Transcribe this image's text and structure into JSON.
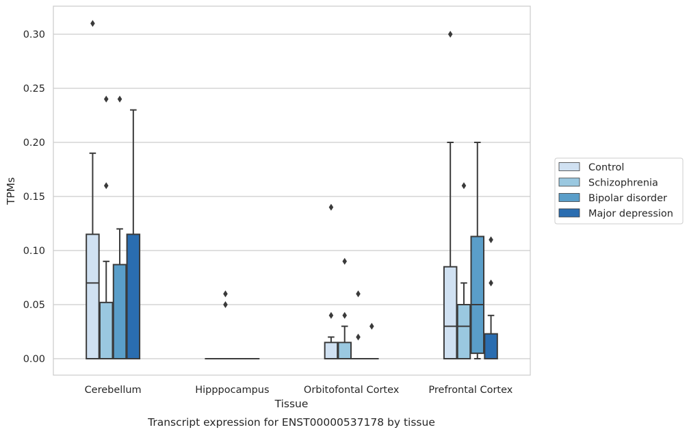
{
  "chart_data": {
    "type": "box",
    "caption": "Transcript expression for ENST00000537178 by tissue",
    "xlabel": "Tissue",
    "ylabel": "TPMs",
    "ylim": [
      -0.015,
      0.327
    ],
    "yticks": [
      0.0,
      0.05,
      0.1,
      0.15,
      0.2,
      0.25,
      0.3
    ],
    "ytick_labels": [
      "0.00",
      "0.05",
      "0.10",
      "0.15",
      "0.20",
      "0.25",
      "0.30"
    ],
    "categories": [
      "Cerebellum",
      "Hipppocampus",
      "Orbitofontal Cortex",
      "Prefrontal Cortex"
    ],
    "grid": "horizontal",
    "legend_position": "right",
    "series": [
      {
        "name": "Control",
        "color": "#d0e1f2",
        "boxes": [
          {
            "q1": 0.0,
            "median": 0.07,
            "q3": 0.115,
            "whisker_low": 0.0,
            "whisker_high": 0.19,
            "outliers": [
              0.31
            ]
          },
          {
            "q1": 0.0,
            "median": 0.0,
            "q3": 0.0,
            "whisker_low": 0.0,
            "whisker_high": 0.0,
            "outliers": []
          },
          {
            "q1": 0.0,
            "median": 0.0,
            "q3": 0.015,
            "whisker_low": 0.0,
            "whisker_high": 0.02,
            "outliers": [
              0.04,
              0.14
            ]
          },
          {
            "q1": 0.0,
            "median": 0.03,
            "q3": 0.085,
            "whisker_low": 0.0,
            "whisker_high": 0.2,
            "outliers": [
              0.3
            ]
          }
        ]
      },
      {
        "name": "Schizophrenia",
        "color": "#9ac8e0",
        "boxes": [
          {
            "q1": 0.0,
            "median": 0.0,
            "q3": 0.052,
            "whisker_low": 0.0,
            "whisker_high": 0.09,
            "outliers": [
              0.16,
              0.24
            ]
          },
          {
            "q1": 0.0,
            "median": 0.0,
            "q3": 0.0,
            "whisker_low": 0.0,
            "whisker_high": 0.0,
            "outliers": [
              0.05,
              0.06
            ]
          },
          {
            "q1": 0.0,
            "median": 0.0,
            "q3": 0.015,
            "whisker_low": 0.0,
            "whisker_high": 0.03,
            "outliers": [
              0.04,
              0.09
            ]
          },
          {
            "q1": 0.0,
            "median": 0.03,
            "q3": 0.05,
            "whisker_low": 0.0,
            "whisker_high": 0.07,
            "outliers": [
              0.16
            ]
          }
        ]
      },
      {
        "name": "Bipolar disorder",
        "color": "#5a9ec9",
        "boxes": [
          {
            "q1": 0.0,
            "median": 0.0,
            "q3": 0.087,
            "whisker_low": 0.0,
            "whisker_high": 0.12,
            "outliers": [
              0.24
            ]
          },
          {
            "q1": 0.0,
            "median": 0.0,
            "q3": 0.0,
            "whisker_low": 0.0,
            "whisker_high": 0.0,
            "outliers": []
          },
          {
            "q1": 0.0,
            "median": 0.0,
            "q3": 0.0,
            "whisker_low": 0.0,
            "whisker_high": 0.0,
            "outliers": [
              0.02,
              0.06
            ]
          },
          {
            "q1": 0.005,
            "median": 0.05,
            "q3": 0.113,
            "whisker_low": 0.0,
            "whisker_high": 0.2,
            "outliers": []
          }
        ]
      },
      {
        "name": "Major depression",
        "color": "#2a6db0",
        "boxes": [
          {
            "q1": 0.0,
            "median": 0.0,
            "q3": 0.115,
            "whisker_low": 0.0,
            "whisker_high": 0.23,
            "outliers": []
          },
          {
            "q1": 0.0,
            "median": 0.0,
            "q3": 0.0,
            "whisker_low": 0.0,
            "whisker_high": 0.0,
            "outliers": []
          },
          {
            "q1": 0.0,
            "median": 0.0,
            "q3": 0.0,
            "whisker_low": 0.0,
            "whisker_high": 0.0,
            "outliers": [
              0.03
            ]
          },
          {
            "q1": 0.0,
            "median": 0.0,
            "q3": 0.023,
            "whisker_low": 0.0,
            "whisker_high": 0.04,
            "outliers": [
              0.07,
              0.11
            ]
          }
        ]
      }
    ]
  }
}
